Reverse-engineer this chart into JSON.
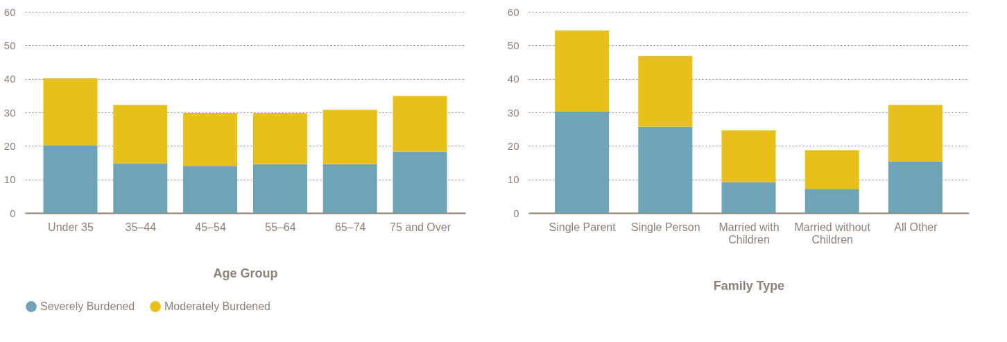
{
  "chart_data": [
    {
      "type": "bar",
      "stacked": true,
      "xlabel": "Age Group",
      "categories": [
        "Under 35",
        "35–44",
        "45–54",
        "55–64",
        "65–74",
        "75 and Over"
      ],
      "series": [
        {
          "name": "Severely Burdened",
          "color": "#6fa3b8",
          "values": [
            20.2,
            14.8,
            14.0,
            14.6,
            14.6,
            18.3
          ]
        },
        {
          "name": "Moderately Burdened",
          "color": "#e8c01c",
          "values": [
            20.0,
            17.4,
            15.8,
            15.2,
            16.2,
            16.6
          ]
        }
      ],
      "ylim": [
        0,
        60
      ],
      "yticks": [
        0,
        10,
        20,
        30,
        40,
        50,
        60
      ],
      "grid": "y",
      "legend": "bottom left"
    },
    {
      "type": "bar",
      "stacked": true,
      "xlabel": "Family Type",
      "categories": [
        "Single Parent",
        "Single Person",
        "Married with Children",
        "Married without Children",
        "All Other"
      ],
      "series": [
        {
          "color": "#6fa3b8",
          "values": [
            30.2,
            25.7,
            9.2,
            7.2,
            15.4
          ]
        },
        {
          "color": "#e8c01c",
          "values": [
            24.2,
            21.1,
            15.4,
            11.5,
            16.8
          ]
        }
      ],
      "ylim": [
        0,
        60
      ],
      "yticks": [
        0,
        10,
        20,
        30,
        40,
        50,
        60
      ],
      "grid": "y",
      "legend": false
    }
  ]
}
